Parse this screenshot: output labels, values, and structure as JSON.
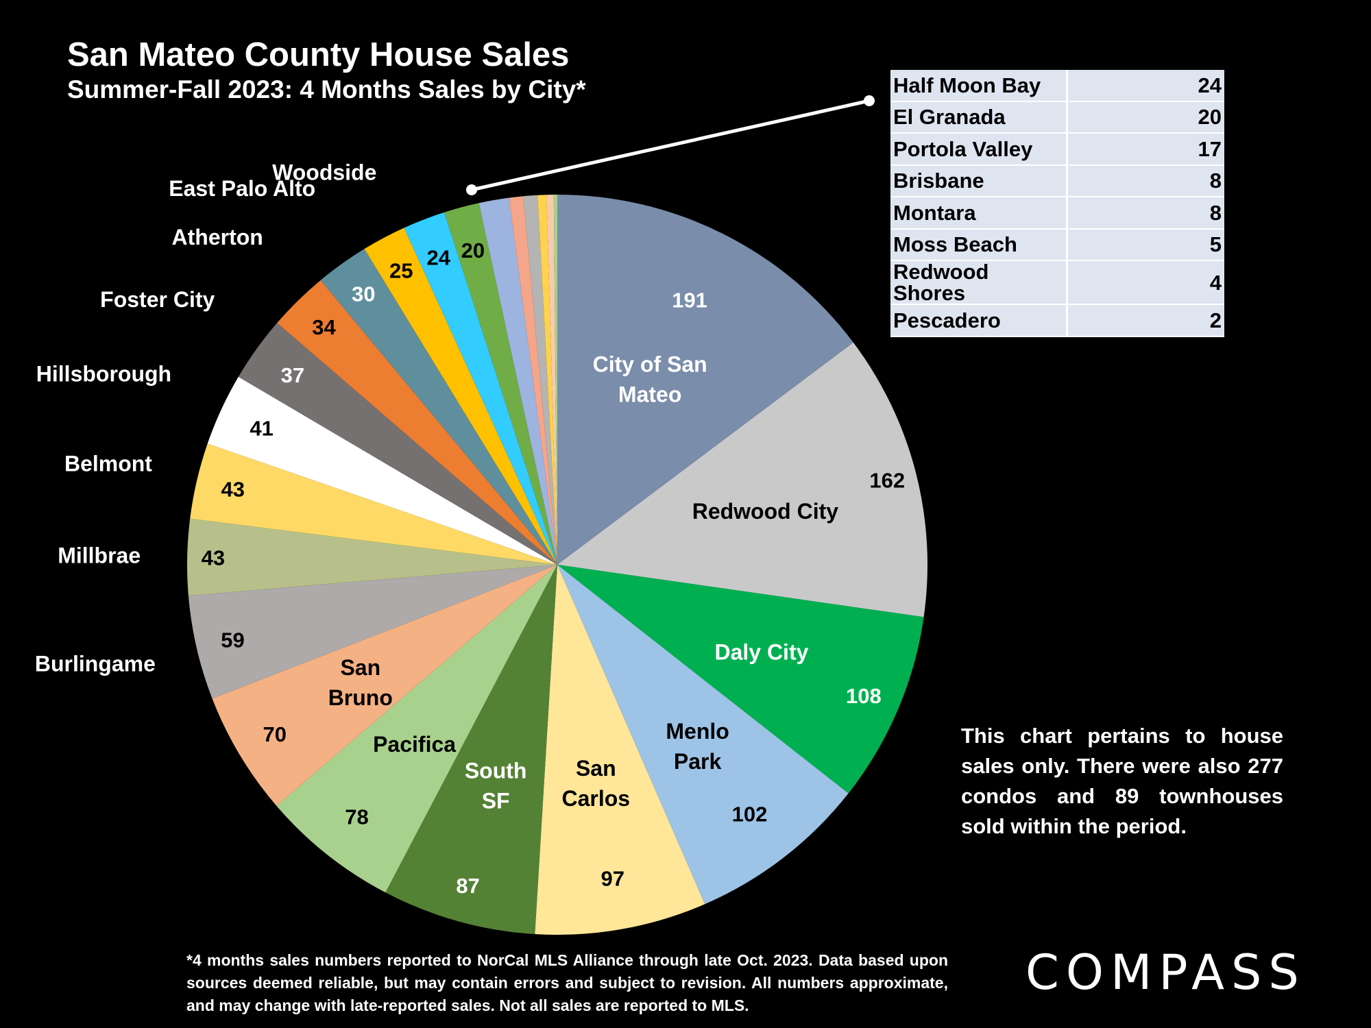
{
  "header": {
    "title": "San Mateo County House Sales",
    "subtitle": "Summer-Fall 2023: 4 Months Sales by City*"
  },
  "chart_data": {
    "type": "pie",
    "slices": [
      {
        "label": "City of San Mateo",
        "value": 191,
        "color": "#7a8daa",
        "label_lines": [
          "City of San",
          "Mateo"
        ],
        "label_color": "#ffffff",
        "value_color": "#ffffff"
      },
      {
        "label": "Redwood City",
        "value": 162,
        "color": "#c9c9c9",
        "label_lines": [
          "Redwood City"
        ],
        "label_color": "#000000",
        "value_color": "#000000"
      },
      {
        "label": "Daly City",
        "value": 108,
        "color": "#00b050",
        "label_lines": [
          "Daly City"
        ],
        "label_color": "#ffffff",
        "value_color": "#ffffff"
      },
      {
        "label": "Menlo Park",
        "value": 102,
        "color": "#9dc3e6",
        "label_lines": [
          "Menlo",
          "Park"
        ],
        "label_color": "#000000",
        "value_color": "#000000"
      },
      {
        "label": "San Carlos",
        "value": 97,
        "color": "#ffe699",
        "label_lines": [
          "San",
          "Carlos"
        ],
        "label_color": "#000000",
        "value_color": "#000000"
      },
      {
        "label": "South SF",
        "value": 87,
        "color": "#548235",
        "label_lines": [
          "South",
          "SF"
        ],
        "label_color": "#ffffff",
        "value_color": "#ffffff"
      },
      {
        "label": "Pacifica",
        "value": 78,
        "color": "#a9d18e",
        "label_lines": [
          "Pacifica"
        ],
        "label_color": "#000000",
        "value_color": "#000000"
      },
      {
        "label": "San Bruno",
        "value": 70,
        "color": "#f4b183",
        "label_lines": [
          "San",
          "Bruno"
        ],
        "label_color": "#000000",
        "value_color": "#000000"
      },
      {
        "label": "Burlingame",
        "value": 59,
        "color": "#aeaaaa",
        "label_lines": [
          "Burlingame"
        ],
        "label_color": "#ffffff",
        "value_color": "#000000"
      },
      {
        "label": "Millbrae",
        "value": 43,
        "color": "#b7c08a",
        "label_lines": [
          "Millbrae"
        ],
        "label_color": "#ffffff",
        "value_color": "#000000"
      },
      {
        "label": "Belmont",
        "value": 43,
        "color": "#ffd966",
        "label_lines": [
          "Belmont"
        ],
        "label_color": "#ffffff",
        "value_color": "#000000"
      },
      {
        "label": "Hillsborough",
        "value": 41,
        "color": "#ffffff",
        "label_lines": [
          "Hillsborough"
        ],
        "label_color": "#ffffff",
        "value_color": "#000000"
      },
      {
        "label": "Foster City",
        "value": 37,
        "color": "#767171",
        "label_lines": [
          "Foster City"
        ],
        "label_color": "#ffffff",
        "value_color": "#ffffff"
      },
      {
        "label": "Atherton",
        "value": 34,
        "color": "#ed7d31",
        "label_lines": [
          "Atherton"
        ],
        "label_color": "#ffffff",
        "value_color": "#000000"
      },
      {
        "label": "East Palo Alto",
        "value": 30,
        "color": "#5f8f9c",
        "label_lines": [
          "East Palo Alto"
        ],
        "label_color": "#ffffff",
        "value_color": "#ffffff"
      },
      {
        "label": "Woodside",
        "value": 25,
        "color": "#ffc000",
        "label_lines": [
          "Woodside"
        ],
        "label_color": "#ffffff",
        "value_color": "#000000"
      },
      {
        "label": "Half Moon Bay",
        "value": 24,
        "color": "#33ccff",
        "label_lines": [],
        "label_color": "#ffffff",
        "value_color": "#000000"
      },
      {
        "label": "El Granada",
        "value": 20,
        "color": "#70ad47",
        "label_lines": [],
        "label_color": "#ffffff",
        "value_color": "#000000"
      },
      {
        "label": "Portola Valley",
        "value": 17,
        "color": "#9db4e0",
        "label_lines": [],
        "label_color": "#ffffff",
        "value_color": ""
      },
      {
        "label": "Brisbane",
        "value": 8,
        "color": "#f4a58a",
        "label_lines": [],
        "label_color": "#ffffff",
        "value_color": ""
      },
      {
        "label": "Montara",
        "value": 8,
        "color": "#b4b4b4",
        "label_lines": [],
        "label_color": "#ffffff",
        "value_color": ""
      },
      {
        "label": "Moss Beach",
        "value": 5,
        "color": "#ffd24d",
        "label_lines": [],
        "label_color": "#ffffff",
        "value_color": ""
      },
      {
        "label": "Redwood Shores",
        "value": 4,
        "color": "#f8cbad",
        "label_lines": [],
        "label_color": "#ffffff",
        "value_color": ""
      },
      {
        "label": "Pescadero",
        "value": 2,
        "color": "#a9d18e",
        "label_lines": [],
        "label_color": "#ffffff",
        "value_color": ""
      }
    ],
    "start": "12 o'clock",
    "direction": "clockwise"
  },
  "inset_table": {
    "rows": [
      {
        "city": "Half Moon Bay",
        "value": "24"
      },
      {
        "city": "El Granada",
        "value": "20"
      },
      {
        "city": "Portola Valley",
        "value": "17"
      },
      {
        "city": "Brisbane",
        "value": "8"
      },
      {
        "city": "Montara",
        "value": "8"
      },
      {
        "city": "Moss Beach",
        "value": "5"
      },
      {
        "city": "Redwood Shores",
        "value": "4"
      },
      {
        "city": "Pescadero",
        "value": "2"
      }
    ]
  },
  "note": "This chart pertains to house sales only. There were also 277 condos and 89 townhouses sold within the period.",
  "footnote": "*4 months sales numbers reported to NorCal MLS Alliance through late Oct. 2023. Data based upon sources deemed reliable, but may contain errors and subject to revision. All numbers approximate, and may change with late-reported sales. Not all sales are reported to MLS.",
  "logo": "COMPASS"
}
